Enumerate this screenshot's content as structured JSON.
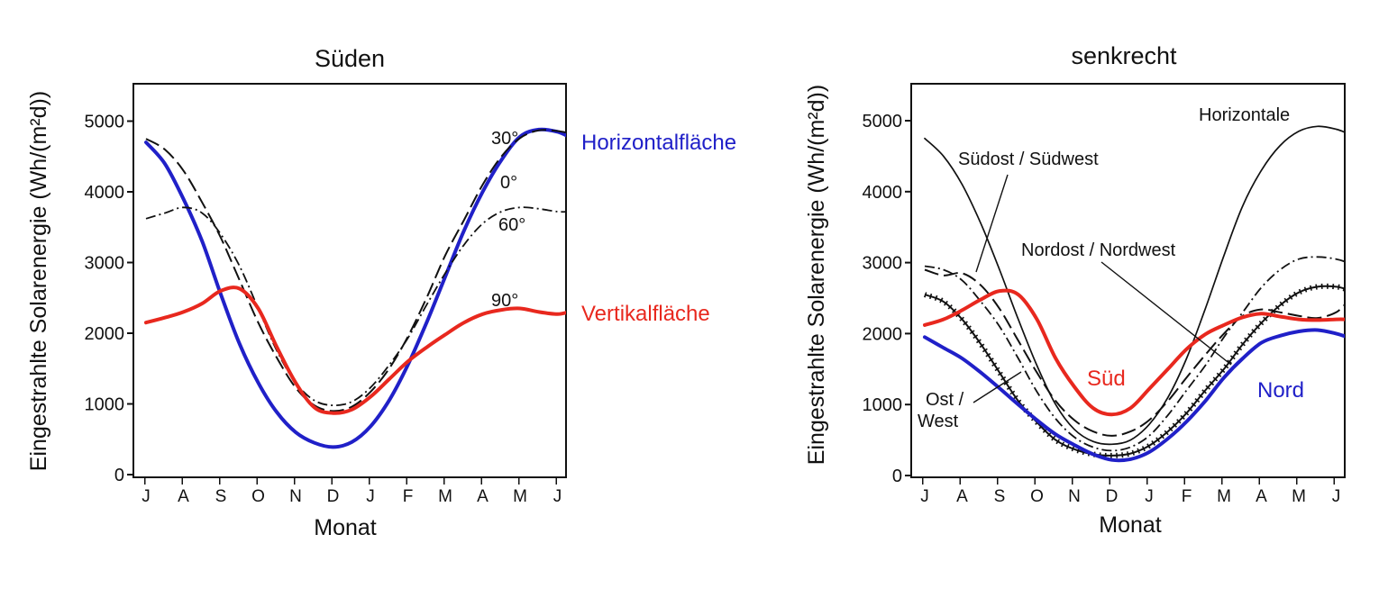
{
  "chart_data": [
    {
      "type": "line",
      "title": "Süden",
      "xlabel": "Monat",
      "ylabel": "Eingestrahlte Solarenergie (Wh/(m²d))",
      "ylim": [
        0,
        5500
      ],
      "yticks": [
        0,
        1000,
        2000,
        3000,
        4000,
        5000
      ],
      "categories": [
        "J",
        "A",
        "S",
        "O",
        "N",
        "D",
        "J",
        "F",
        "M",
        "A",
        "M",
        "J"
      ],
      "x": [
        0,
        0.5,
        1,
        1.5,
        2,
        2.5,
        3,
        3.5,
        4,
        4.5,
        5,
        5.5,
        6,
        6.5,
        7,
        7.5,
        8,
        8.5,
        9,
        9.5,
        10,
        10.5,
        11,
        11.3
      ],
      "series": [
        {
          "name": "Horizontalfläche",
          "label": "0°",
          "color": "#2020c8",
          "style": "thick-solid",
          "values": [
            4700,
            4400,
            3900,
            3300,
            2550,
            1850,
            1300,
            880,
            600,
            450,
            390,
            460,
            680,
            1050,
            1550,
            2150,
            2800,
            3450,
            4000,
            4450,
            4780,
            4880,
            4850,
            4780
          ]
        },
        {
          "name": "30°",
          "label": "30°",
          "color": "#111111",
          "style": "long-dash",
          "values": [
            4750,
            4600,
            4300,
            3850,
            3350,
            2750,
            2150,
            1650,
            1230,
            980,
            900,
            960,
            1170,
            1500,
            1950,
            2500,
            3100,
            3600,
            4100,
            4500,
            4760,
            4870,
            4860,
            4830
          ]
        },
        {
          "name": "60°",
          "label": "60°",
          "color": "#111111",
          "style": "dash-dot",
          "values": [
            3620,
            3700,
            3780,
            3700,
            3400,
            2950,
            2350,
            1750,
            1300,
            1050,
            980,
            1030,
            1230,
            1550,
            1930,
            2400,
            2850,
            3250,
            3550,
            3720,
            3780,
            3760,
            3720,
            3720
          ]
        },
        {
          "name": "Vertikalfläche",
          "label": "90°",
          "color": "#e8281e",
          "style": "thick-solid",
          "values": [
            2150,
            2220,
            2300,
            2420,
            2600,
            2630,
            2350,
            1800,
            1300,
            950,
            870,
            920,
            1100,
            1350,
            1600,
            1800,
            1980,
            2150,
            2270,
            2330,
            2350,
            2300,
            2270,
            2300
          ]
        }
      ],
      "annotations": [
        "30°",
        "0°",
        "60°",
        "90°",
        "Horizontalfläche",
        "Vertikalfläche"
      ]
    },
    {
      "type": "line",
      "title": "senkrecht",
      "xlabel": "Monat",
      "ylabel": "Eingestrahlte Solarenergie (Wh/(m²d))",
      "ylim": [
        0,
        5500
      ],
      "yticks": [
        0,
        1000,
        2000,
        3000,
        4000,
        5000
      ],
      "categories": [
        "J",
        "A",
        "S",
        "O",
        "N",
        "D",
        "J",
        "F",
        "M",
        "A",
        "M",
        "J"
      ],
      "x": [
        0,
        0.5,
        1,
        1.5,
        2,
        2.5,
        3,
        3.5,
        4,
        4.5,
        5,
        5.5,
        6,
        6.5,
        7,
        7.5,
        8,
        8.5,
        9,
        9.5,
        10,
        10.5,
        11,
        11.3
      ],
      "series": [
        {
          "name": "Horizontale",
          "color": "#111111",
          "style": "thin-solid",
          "values": [
            4750,
            4500,
            4100,
            3550,
            2900,
            2200,
            1550,
            1000,
            650,
            480,
            440,
            500,
            720,
            1100,
            1650,
            2350,
            3100,
            3800,
            4300,
            4650,
            4850,
            4920,
            4880,
            4820
          ]
        },
        {
          "name": "Südost / Südwest",
          "color": "#111111",
          "style": "long-dash",
          "values": [
            2900,
            2820,
            2850,
            2680,
            2350,
            1900,
            1450,
            1050,
            780,
            620,
            560,
            620,
            780,
            1050,
            1380,
            1700,
            2000,
            2250,
            2340,
            2300,
            2250,
            2220,
            2300,
            2450
          ]
        },
        {
          "name": "Nordost / Nordwest",
          "color": "#111111",
          "style": "crosses",
          "values": [
            2550,
            2450,
            2200,
            1850,
            1450,
            1050,
            750,
            500,
            370,
            300,
            280,
            310,
            420,
            620,
            880,
            1200,
            1500,
            1850,
            2150,
            2400,
            2580,
            2660,
            2660,
            2620
          ]
        },
        {
          "name": "Ost / West",
          "color": "#111111",
          "style": "dash-dot",
          "values": [
            2950,
            2900,
            2750,
            2450,
            2100,
            1650,
            1180,
            800,
            540,
            400,
            350,
            400,
            560,
            850,
            1200,
            1550,
            1950,
            2300,
            2650,
            2900,
            3050,
            3080,
            3050,
            3000
          ]
        },
        {
          "name": "Süd",
          "color": "#e8281e",
          "style": "thick-solid",
          "values": [
            2120,
            2200,
            2330,
            2480,
            2600,
            2550,
            2200,
            1650,
            1250,
            950,
            860,
            950,
            1220,
            1500,
            1780,
            1990,
            2120,
            2230,
            2280,
            2240,
            2200,
            2190,
            2200,
            2200
          ]
        },
        {
          "name": "Nord",
          "color": "#2020c8",
          "style": "thick-solid",
          "values": [
            1950,
            1800,
            1650,
            1450,
            1230,
            1000,
            780,
            580,
            430,
            300,
            220,
            230,
            330,
            520,
            760,
            1050,
            1380,
            1650,
            1870,
            1970,
            2030,
            2050,
            2000,
            1950
          ]
        }
      ],
      "annotations": [
        "Horizontale",
        "Südost / Südwest",
        "Nordost / Nordwest",
        "Ost / West",
        "Süd",
        "Nord"
      ]
    }
  ],
  "text": {
    "left": {
      "ann_30": "30°",
      "ann_0": "0°",
      "ann_60": "60°",
      "ann_90": "90°",
      "ann_horizontal": "Horizontalfläche",
      "ann_vertical": "Vertikalfläche"
    },
    "right": {
      "ann_horizontale": "Horizontale",
      "ann_suedost": "Südost / Südwest",
      "ann_nordost": "Nordost / Nordwest",
      "ann_ost": "Ost /",
      "ann_west": "West",
      "ann_sued": "Süd",
      "ann_nord": "Nord"
    }
  }
}
